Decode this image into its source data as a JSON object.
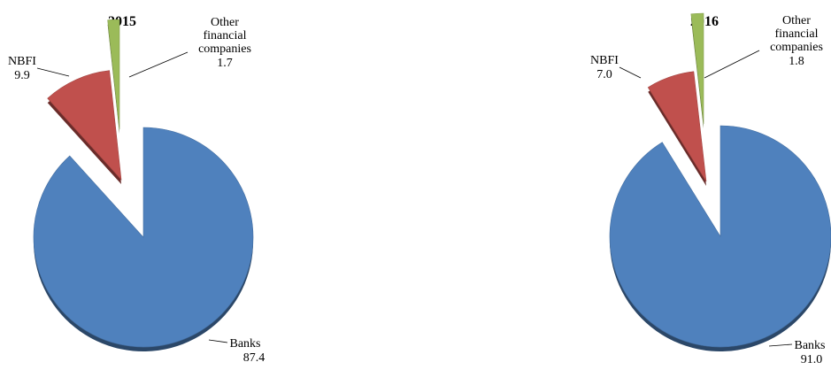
{
  "chart_data": [
    {
      "type": "pie",
      "title": "2015",
      "categories": [
        "Banks",
        "NBFI",
        "Other financial companies"
      ],
      "values": [
        87.4,
        9.9,
        1.7
      ],
      "exploded": true,
      "legend": "none",
      "colors": [
        "#4f81bd",
        "#c0504d",
        "#9bbb59"
      ],
      "labels": [
        {
          "lines": [
            "Banks"
          ],
          "value": "87.4"
        },
        {
          "lines": [
            "NBFI"
          ],
          "value": "9.9"
        },
        {
          "lines": [
            "Other",
            "financial",
            "companies"
          ],
          "value": "1.7"
        }
      ]
    },
    {
      "type": "pie",
      "title": "2016",
      "categories": [
        "Banks",
        "NBFI",
        "Other financial companies"
      ],
      "values": [
        91.0,
        7.0,
        1.8
      ],
      "exploded": true,
      "legend": "none",
      "colors": [
        "#4f81bd",
        "#c0504d",
        "#9bbb59"
      ],
      "labels": [
        {
          "lines": [
            "Banks"
          ],
          "value": "91.0"
        },
        {
          "lines": [
            "NBFI"
          ],
          "value": "7.0"
        },
        {
          "lines": [
            "Other",
            "financial",
            "companies"
          ],
          "value": "1.8"
        }
      ]
    }
  ]
}
